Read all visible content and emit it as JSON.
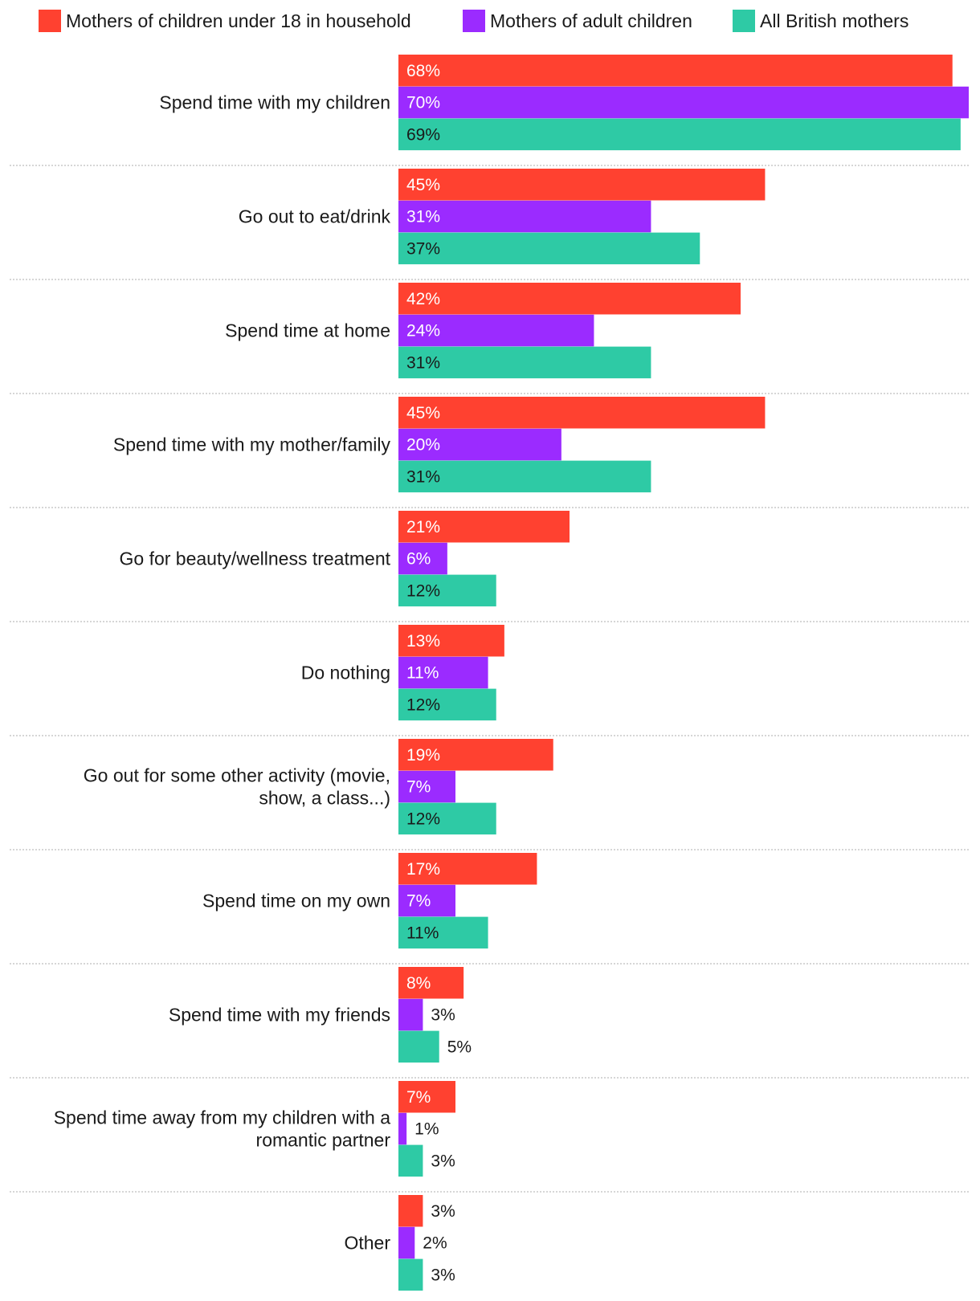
{
  "chart_data": {
    "type": "bar",
    "orientation": "horizontal",
    "value_suffix": "%",
    "xlim": [
      0,
      70
    ],
    "grid": false,
    "legend_position": "top",
    "series": [
      {
        "name": "Mothers of children under 18 in household",
        "color": "#ff4130",
        "values": [
          68,
          45,
          42,
          45,
          21,
          13,
          19,
          17,
          8,
          7,
          3
        ]
      },
      {
        "name": "Mothers of adult children",
        "color": "#9b2bff",
        "values": [
          70,
          31,
          24,
          20,
          6,
          11,
          7,
          7,
          3,
          1,
          2
        ]
      },
      {
        "name": "All British mothers",
        "color": "#2ecaa5",
        "values": [
          69,
          37,
          31,
          31,
          12,
          12,
          12,
          11,
          5,
          3,
          3
        ]
      }
    ],
    "categories": [
      [
        "Spend time with my children"
      ],
      [
        "Go out to eat/drink"
      ],
      [
        "Spend time at home"
      ],
      [
        "Spend time with my mother/family"
      ],
      [
        "Go for beauty/wellness treatment"
      ],
      [
        "Do nothing"
      ],
      [
        "Go out for some other activity (movie,",
        "show, a class...)"
      ],
      [
        "Spend time on my own"
      ],
      [
        "Spend time with my friends"
      ],
      [
        "Spend time away from my children with a",
        "romantic partner"
      ],
      [
        "Other"
      ]
    ]
  }
}
